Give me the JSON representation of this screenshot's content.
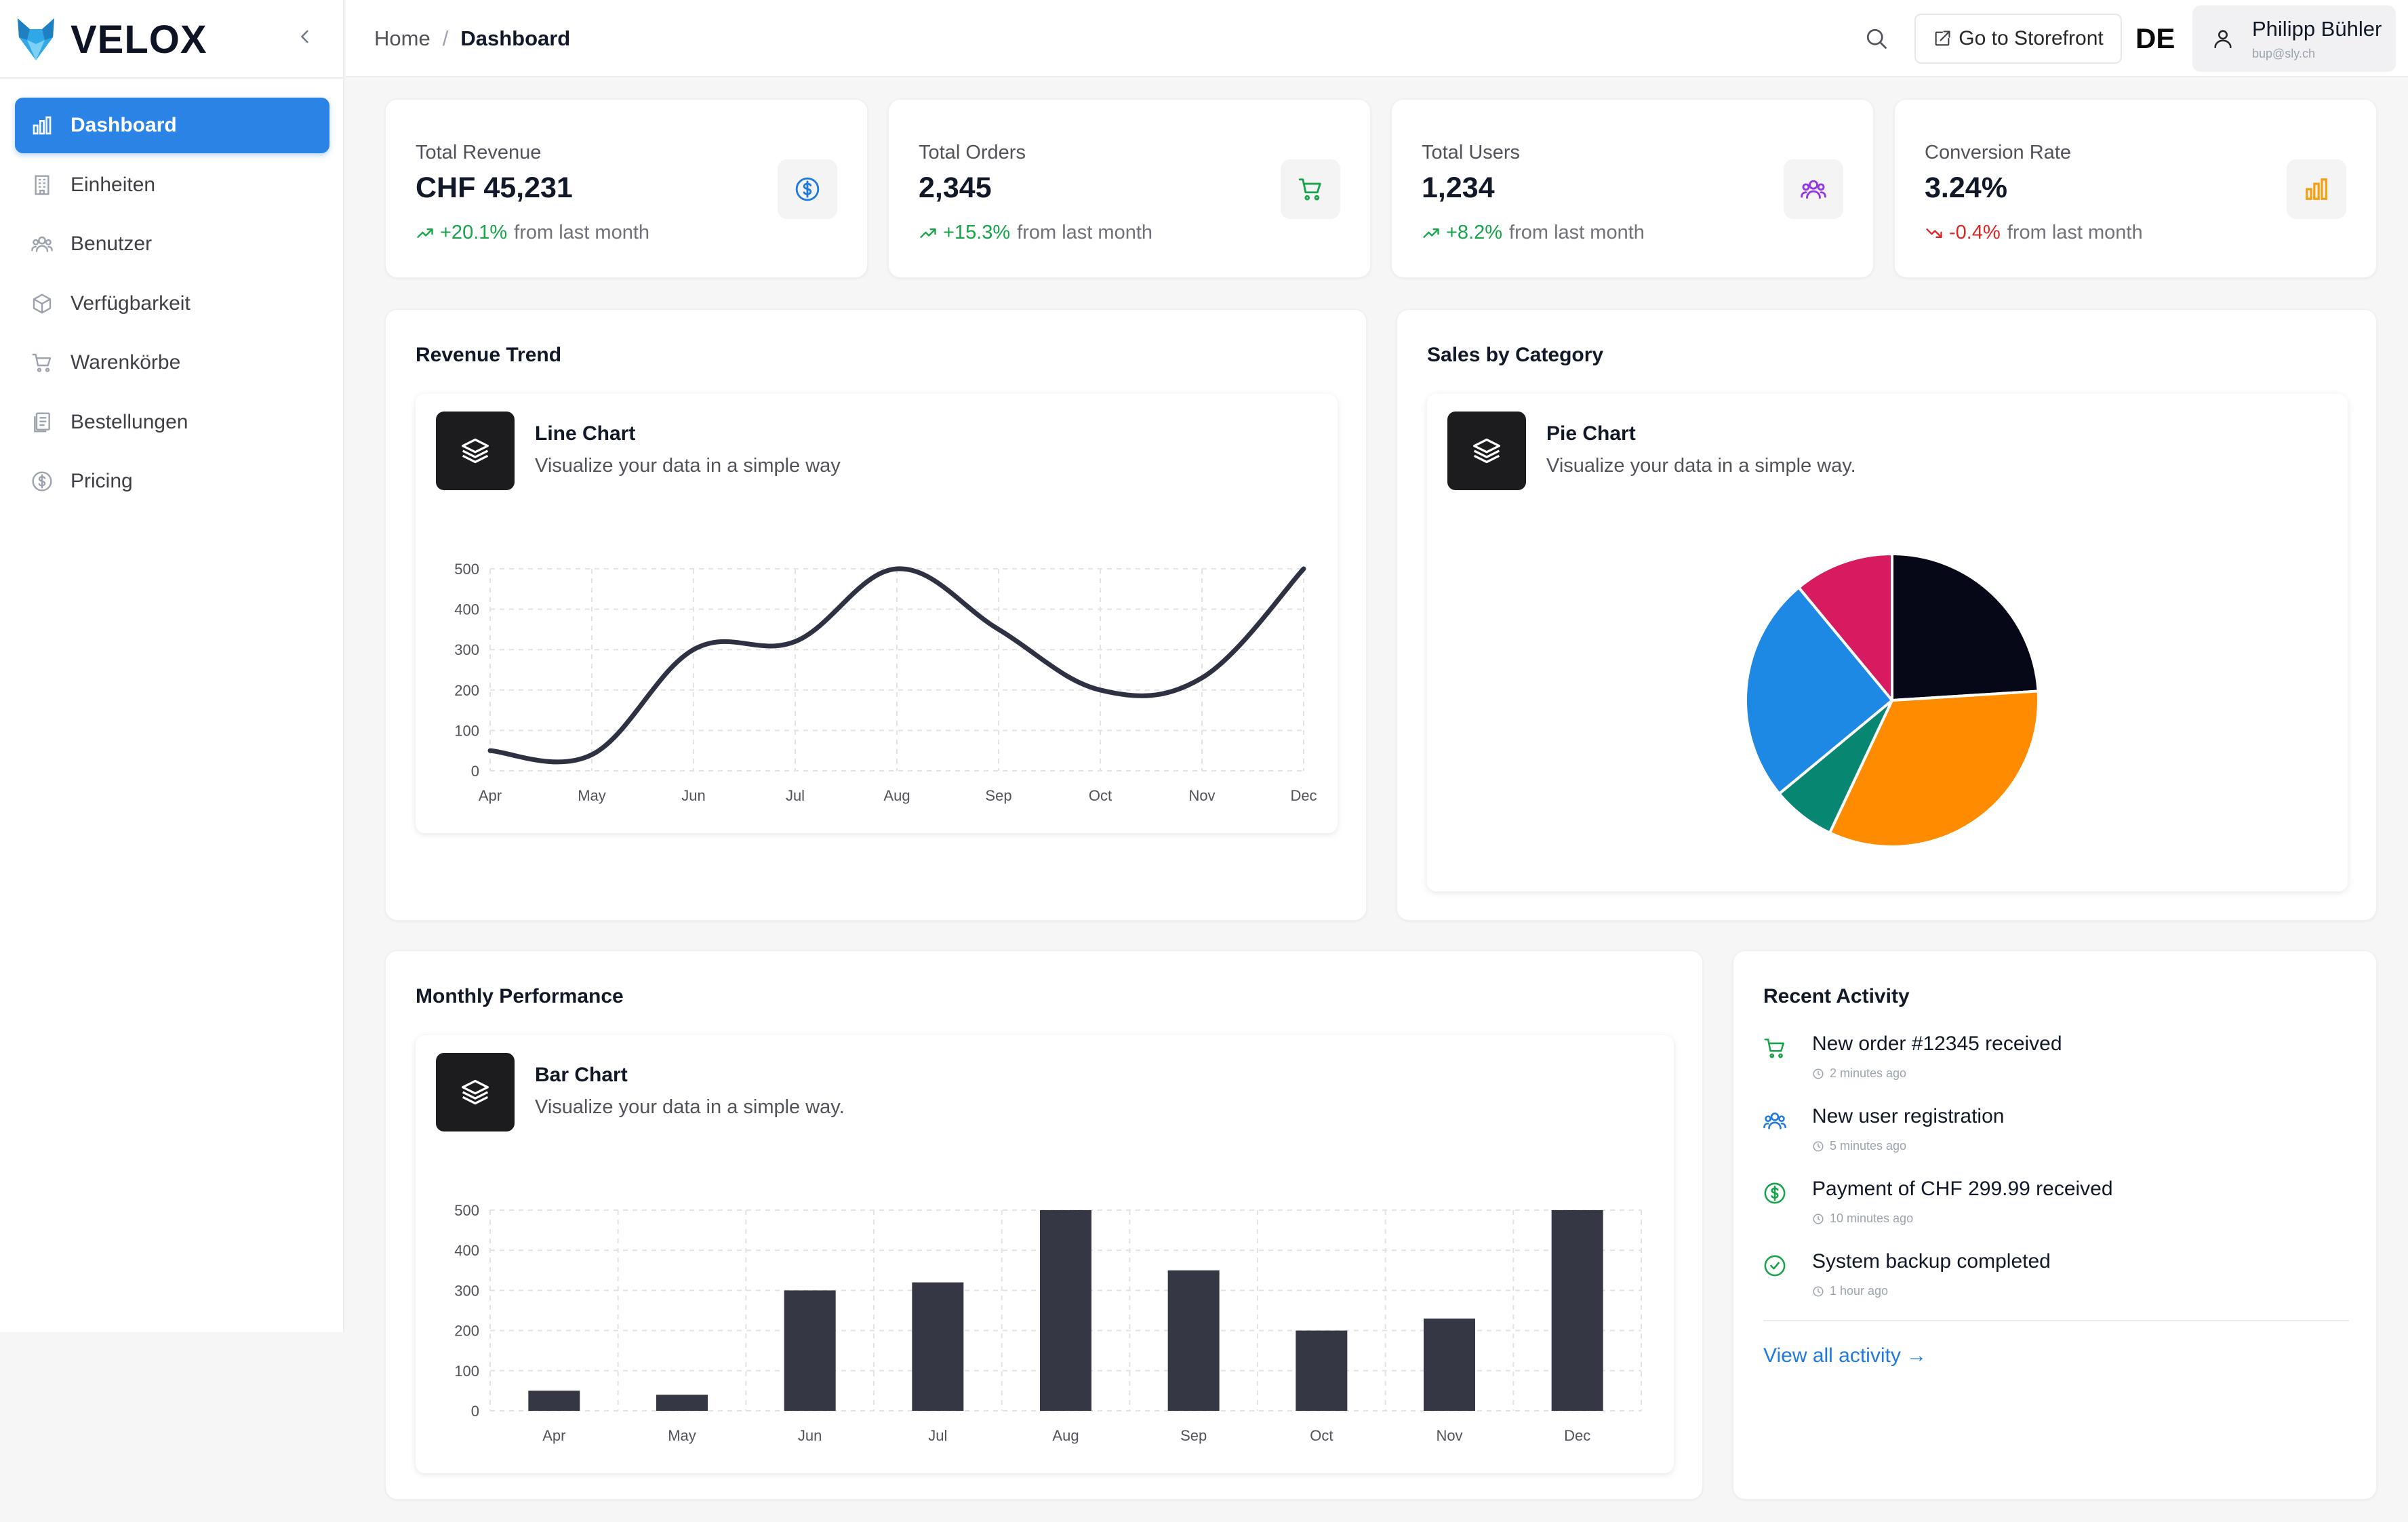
{
  "brand": {
    "name": "VELOX"
  },
  "sidebar": {
    "items": [
      {
        "label": "Dashboard",
        "icon": "bar-chart-icon",
        "active": true
      },
      {
        "label": "Einheiten",
        "icon": "building-icon"
      },
      {
        "label": "Benutzer",
        "icon": "users-icon"
      },
      {
        "label": "Verfügbarkeit",
        "icon": "package-icon"
      },
      {
        "label": "Warenkörbe",
        "icon": "cart-icon"
      },
      {
        "label": "Bestellungen",
        "icon": "orders-icon"
      },
      {
        "label": "Pricing",
        "icon": "dollar-icon"
      }
    ]
  },
  "header": {
    "breadcrumb": {
      "home": "Home",
      "separator": "/",
      "current": "Dashboard"
    },
    "storefront_label": "Go to Storefront",
    "language": "DE",
    "user": {
      "name": "Philipp Bühler",
      "email": "bup@sly.ch"
    }
  },
  "stats": [
    {
      "title": "Total Revenue",
      "value": "CHF 45,231",
      "change": "+20.1%",
      "suffix": "from last month",
      "trend": "up",
      "icon": "dollar-icon",
      "color": "#1f7ae0"
    },
    {
      "title": "Total Orders",
      "value": "2,345",
      "change": "+15.3%",
      "suffix": "from last month",
      "trend": "up",
      "icon": "cart-icon",
      "color": "#16a34a"
    },
    {
      "title": "Total Users",
      "value": "1,234",
      "change": "+8.2%",
      "suffix": "from last month",
      "trend": "up",
      "icon": "users-icon",
      "color": "#9333ea"
    },
    {
      "title": "Conversion Rate",
      "value": "3.24%",
      "change": "-0.4%",
      "suffix": "from last month",
      "trend": "down",
      "icon": "bar-chart-icon",
      "color": "#f59e0b"
    }
  ],
  "revenue_card": {
    "title": "Revenue Trend",
    "chart_title": "Line Chart",
    "chart_desc": "Visualize your data in a simple way"
  },
  "category_card": {
    "title": "Sales by Category",
    "chart_title": "Pie Chart",
    "chart_desc": "Visualize your data in a simple way."
  },
  "performance_card": {
    "title": "Monthly Performance",
    "chart_title": "Bar Chart",
    "chart_desc": "Visualize your data in a simple way."
  },
  "activity": {
    "title": "Recent Activity",
    "items": [
      {
        "text": "New order #12345 received",
        "time": "2 minutes ago",
        "icon": "cart-icon",
        "color": "#16a34a"
      },
      {
        "text": "New user registration",
        "time": "5 minutes ago",
        "icon": "users-icon",
        "color": "#1f7ae0"
      },
      {
        "text": "Payment of CHF 299.99 received",
        "time": "10 minutes ago",
        "icon": "dollar-icon",
        "color": "#16a34a"
      },
      {
        "text": "System backup completed",
        "time": "1 hour ago",
        "icon": "check-circle-icon",
        "color": "#16a34a"
      }
    ],
    "view_all": "View all activity →"
  },
  "chart_data": [
    {
      "type": "line",
      "categories": [
        "Apr",
        "May",
        "Jun",
        "Jul",
        "Aug",
        "Sep",
        "Oct",
        "Nov",
        "Dec"
      ],
      "values": [
        50,
        40,
        300,
        320,
        500,
        350,
        200,
        230,
        500
      ],
      "ylim": [
        0,
        500
      ],
      "yticks": [
        0,
        100,
        200,
        300,
        400,
        500
      ],
      "grid": true,
      "color": "#2e3141"
    },
    {
      "type": "pie",
      "slices": [
        {
          "value": 24,
          "color": "#060818"
        },
        {
          "value": 33,
          "color": "#ff8c00"
        },
        {
          "value": 7,
          "color": "#078672"
        },
        {
          "value": 25,
          "color": "#1e88e5"
        },
        {
          "value": 11,
          "color": "#d81b60"
        }
      ]
    },
    {
      "type": "bar",
      "categories": [
        "Apr",
        "May",
        "Jun",
        "Jul",
        "Aug",
        "Sep",
        "Oct",
        "Nov",
        "Dec"
      ],
      "values": [
        50,
        40,
        300,
        320,
        500,
        350,
        200,
        230,
        500
      ],
      "ylim": [
        0,
        500
      ],
      "yticks": [
        0,
        100,
        200,
        300,
        400,
        500
      ],
      "grid": true,
      "color": "#353844"
    }
  ]
}
